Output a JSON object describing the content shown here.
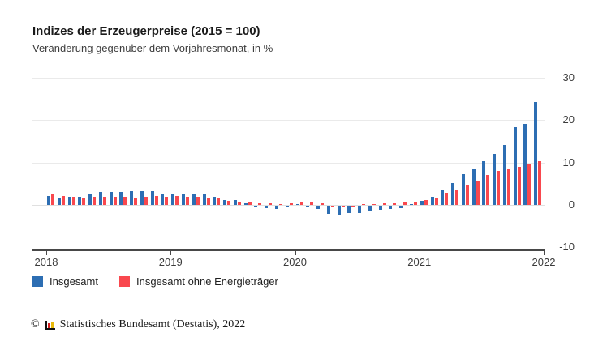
{
  "header": {
    "title": "Indizes der Erzeugerpreise (2015 = 100)",
    "subtitle": "Veränderung gegenüber dem Vorjahresmonat, in %"
  },
  "legend": [
    {
      "label": "Insgesamt",
      "color": "#2d6eb3"
    },
    {
      "label": "Insgesamt ohne Energieträger",
      "color": "#f9484e"
    }
  ],
  "footer": {
    "copyright": "©",
    "logo_icon": "destatis-bar-chart-icon",
    "text": "Statistisches Bundesamt (Destatis), 2022"
  },
  "chart_data": {
    "type": "bar",
    "title": "Indizes der Erzeugerpreise (2015 = 100)",
    "subtitle": "Veränderung gegenüber dem Vorjahresmonat, in %",
    "grid": true,
    "legend_position": "bottom",
    "ylim": [
      -10.6,
      30.4
    ],
    "yticks": [
      30,
      20,
      10,
      0,
      -10
    ],
    "xticks": [
      "2018",
      "2019",
      "2020",
      "2021",
      "2022"
    ],
    "categories": [
      "2018-01",
      "2018-02",
      "2018-03",
      "2018-04",
      "2018-05",
      "2018-06",
      "2018-07",
      "2018-08",
      "2018-09",
      "2018-10",
      "2018-11",
      "2018-12",
      "2019-01",
      "2019-02",
      "2019-03",
      "2019-04",
      "2019-05",
      "2019-06",
      "2019-07",
      "2019-08",
      "2019-09",
      "2019-10",
      "2019-11",
      "2019-12",
      "2020-01",
      "2020-02",
      "2020-03",
      "2020-04",
      "2020-05",
      "2020-06",
      "2020-07",
      "2020-08",
      "2020-09",
      "2020-10",
      "2020-11",
      "2020-12",
      "2021-01",
      "2021-02",
      "2021-03",
      "2021-04",
      "2021-05",
      "2021-06",
      "2021-07",
      "2021-08",
      "2021-09",
      "2021-10",
      "2021-11",
      "2021-12"
    ],
    "series": [
      {
        "name": "Insgesamt",
        "color": "#2d6eb3",
        "values": [
          2.1,
          1.8,
          1.9,
          2.0,
          2.7,
          3.0,
          3.0,
          3.1,
          3.2,
          3.3,
          3.3,
          2.7,
          2.6,
          2.6,
          2.4,
          2.5,
          1.9,
          1.2,
          1.1,
          0.3,
          -0.1,
          -0.6,
          -0.7,
          -0.2,
          0.2,
          -0.1,
          -0.8,
          -1.9,
          -2.2,
          -1.8,
          -1.7,
          -1.2,
          -1.0,
          -0.7,
          -0.5,
          0.2,
          0.9,
          1.9,
          3.7,
          5.2,
          7.2,
          8.5,
          10.4,
          12.0,
          14.2,
          18.4,
          19.2,
          24.2
        ]
      },
      {
        "name": "Insgesamt ohne Energieträger",
        "color": "#f9484e",
        "values": [
          2.6,
          2.1,
          1.9,
          1.8,
          1.9,
          1.9,
          1.9,
          1.9,
          1.8,
          1.9,
          2.1,
          1.9,
          2.1,
          2.0,
          1.9,
          1.7,
          1.5,
          1.0,
          0.6,
          0.5,
          0.4,
          0.3,
          0.2,
          0.3,
          0.5,
          0.6,
          0.3,
          -0.2,
          -0.2,
          -0.2,
          0.0,
          0.0,
          0.3,
          0.3,
          0.5,
          0.7,
          1.1,
          1.7,
          2.8,
          3.4,
          4.7,
          5.8,
          7.1,
          8.0,
          8.5,
          9.0,
          9.7,
          10.3
        ]
      }
    ]
  }
}
